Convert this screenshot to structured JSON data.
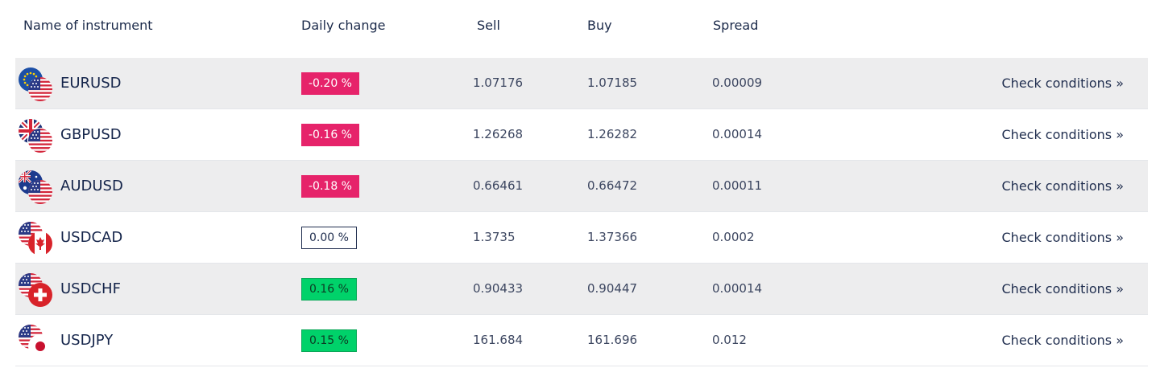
{
  "headers": {
    "name": "Name of instrument",
    "change": "Daily change",
    "sell": "Sell",
    "buy": "Buy",
    "spread": "Spread"
  },
  "rows": [
    {
      "symbol": "EURUSD",
      "change": "-0.20 %",
      "direction": "negative",
      "sell": "1.07176",
      "buy": "1.07185",
      "spread": "0.00009",
      "link": "Check conditions »",
      "base_flag": "eu-flag-icon",
      "quote_flag": "us-flag-icon"
    },
    {
      "symbol": "GBPUSD",
      "change": "-0.16 %",
      "direction": "negative",
      "sell": "1.26268",
      "buy": "1.26282",
      "spread": "0.00014",
      "link": "Check conditions »",
      "base_flag": "uk-flag-icon",
      "quote_flag": "us-flag-icon"
    },
    {
      "symbol": "AUDUSD",
      "change": "-0.18 %",
      "direction": "negative",
      "sell": "0.66461",
      "buy": "0.66472",
      "spread": "0.00011",
      "link": "Check conditions »",
      "base_flag": "au-flag-icon",
      "quote_flag": "us-flag-icon"
    },
    {
      "symbol": "USDCAD",
      "change": "0.00 %",
      "direction": "neutral",
      "sell": "1.3735",
      "buy": "1.37366",
      "spread": "0.0002",
      "link": "Check conditions »",
      "base_flag": "us-flag-icon",
      "quote_flag": "ca-flag-icon"
    },
    {
      "symbol": "USDCHF",
      "change": "0.16 %",
      "direction": "positive",
      "sell": "0.90433",
      "buy": "0.90447",
      "spread": "0.00014",
      "link": "Check conditions »",
      "base_flag": "us-flag-icon",
      "quote_flag": "ch-flag-icon"
    },
    {
      "symbol": "USDJPY",
      "change": "0.15 %",
      "direction": "positive",
      "sell": "161.684",
      "buy": "161.696",
      "spread": "0.012",
      "link": "Check conditions »",
      "base_flag": "us-flag-icon",
      "quote_flag": "jp-flag-icon"
    }
  ],
  "colors": {
    "negative": "#e6236a",
    "positive": "#00d26a",
    "text": "#1f2d4e",
    "row_shade": "#ededee"
  }
}
